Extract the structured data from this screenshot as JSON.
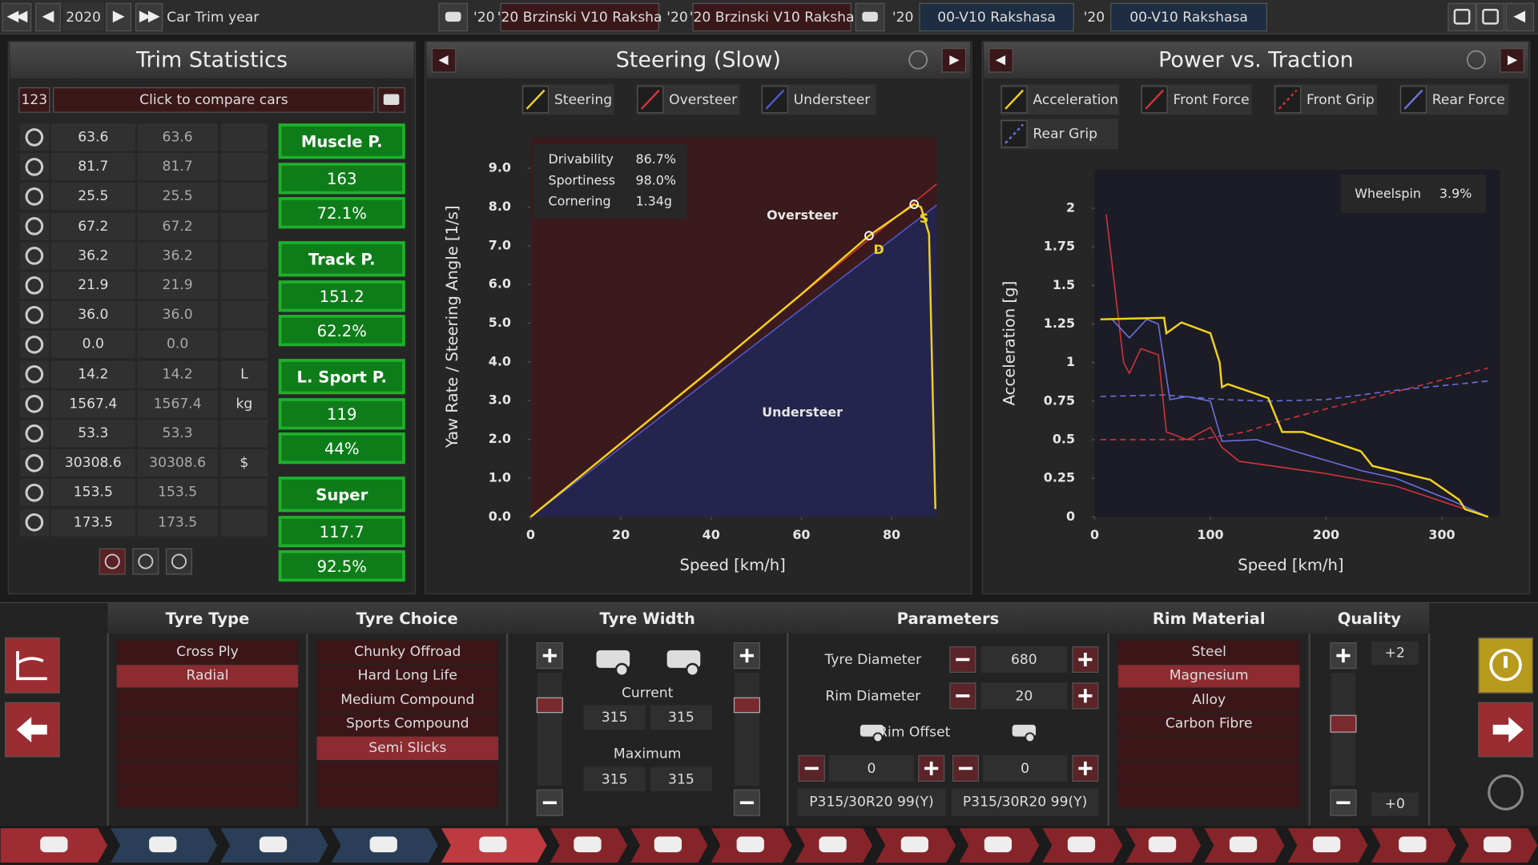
{
  "top_bar": {
    "year": "2020",
    "year_label": "Car Trim year",
    "cars": [
      {
        "year": "'20",
        "name": "'20 Brzinski V10 Raksha"
      },
      {
        "year": "'20",
        "name": "'20 Brzinski V10 Raksha"
      },
      {
        "year": "'20",
        "name": "00-V10 Rakshasa"
      },
      {
        "year": "'20",
        "name": "00-V10 Rakshasa"
      }
    ]
  },
  "trim_statistics": {
    "title": "Trim Statistics",
    "compare_id": "123",
    "compare_button": "Click to compare cars",
    "rows": [
      {
        "current": "63.6",
        "compare": "63.6"
      },
      {
        "current": "81.7",
        "compare": "81.7"
      },
      {
        "current": "25.5",
        "compare": "25.5"
      },
      {
        "current": "67.2",
        "compare": "67.2"
      },
      {
        "current": "36.2",
        "compare": "36.2"
      },
      {
        "current": "21.9",
        "compare": "21.9"
      },
      {
        "current": "36.0",
        "compare": "36.0"
      },
      {
        "current": "0.0",
        "compare": "0.0"
      },
      {
        "current": "14.2",
        "compare": "14.2",
        "unit": "L"
      },
      {
        "current": "1567.4",
        "compare": "1567.4",
        "unit": "kg"
      },
      {
        "current": "53.3",
        "compare": "53.3"
      },
      {
        "current": "30308.6",
        "compare": "30308.6",
        "unit": "$"
      },
      {
        "current": "153.5",
        "compare": "153.5"
      },
      {
        "current": "173.5",
        "compare": "173.5"
      }
    ],
    "scores": [
      {
        "name": "Muscle P.",
        "score": "163",
        "percent": "72.1%"
      },
      {
        "name": "Track P.",
        "score": "151.2",
        "percent": "62.2%"
      },
      {
        "name": "L. Sport P.",
        "score": "119",
        "percent": "44%"
      },
      {
        "name": "Super",
        "score": "117.7",
        "percent": "92.5%"
      }
    ]
  },
  "chart_data": [
    {
      "type": "line",
      "title": "Steering (Slow)",
      "xlabel": "Speed [km/h]",
      "ylabel": "Yaw Rate / Steering Angle [1/s]",
      "xlim": [
        0,
        90
      ],
      "ylim": [
        0,
        9.8
      ],
      "xticks": [
        0,
        20,
        40,
        60,
        80
      ],
      "yticks": [
        {
          "value": 0,
          "label": "0.0"
        },
        {
          "value": 1,
          "label": "1.0"
        },
        {
          "value": 2,
          "label": "2.0"
        },
        {
          "value": 3,
          "label": "3.0"
        },
        {
          "value": 4,
          "label": "4.0"
        },
        {
          "value": 5,
          "label": "5.0"
        },
        {
          "value": 6,
          "label": "6.0"
        },
        {
          "value": 7,
          "label": "7.0"
        },
        {
          "value": 8,
          "label": "8.0"
        },
        {
          "value": 9,
          "label": "9.0"
        }
      ],
      "series": [
        {
          "name": "Steering",
          "color": "#f2d21c",
          "x": [
            0,
            20,
            40,
            60,
            75,
            85,
            86.5,
            88.3,
            89.7
          ],
          "values": [
            0,
            1.9,
            3.8,
            5.75,
            7.26,
            8.07,
            8.0,
            7.3,
            0.2
          ]
        },
        {
          "name": "Oversteer",
          "color": "#d0343a",
          "x": [
            0,
            90
          ],
          "values": [
            0,
            8.6
          ]
        },
        {
          "name": "Understeer",
          "color": "#5058c8",
          "x": [
            0,
            90
          ],
          "values": [
            0,
            8.05
          ]
        }
      ],
      "stats": [
        {
          "label": "Drivability",
          "value": "86.7%"
        },
        {
          "label": "Sportiness",
          "value": "98.0%"
        },
        {
          "label": "Cornering",
          "value": "1.34g"
        }
      ],
      "annotations": [
        "Oversteer",
        "Understeer",
        "D",
        "S"
      ]
    },
    {
      "type": "line",
      "title": "Power vs. Traction",
      "xlabel": "Speed [km/h]",
      "ylabel": "Acceleration [g]",
      "xlim": [
        0,
        350
      ],
      "ylim": [
        0,
        2.25
      ],
      "xticks": [
        0,
        100,
        200,
        300
      ],
      "yticks": [
        0,
        0.25,
        0.5,
        0.75,
        1,
        1.25,
        1.5,
        1.75,
        2
      ],
      "series": [
        {
          "name": "Acceleration",
          "color": "#f2d21c",
          "style": "solid",
          "x": [
            5,
            60,
            62,
            75,
            100,
            108,
            110,
            115,
            150,
            162,
            180,
            230,
            240,
            290,
            315,
            320,
            340
          ],
          "values": [
            1.28,
            1.29,
            1.19,
            1.26,
            1.19,
            1.0,
            0.84,
            0.86,
            0.77,
            0.55,
            0.55,
            0.425,
            0.33,
            0.24,
            0.11,
            0.05,
            0
          ]
        },
        {
          "name": "Front Force",
          "color": "#d0343a",
          "style": "solid",
          "x": [
            10,
            25,
            30,
            40,
            55,
            62,
            80,
            100,
            110,
            125,
            200,
            260,
            320,
            340
          ],
          "values": [
            1.96,
            1.0,
            0.93,
            1.09,
            1.05,
            0.55,
            0.5,
            0.58,
            0.45,
            0.36,
            0.28,
            0.2,
            0.05,
            0
          ]
        },
        {
          "name": "Front Grip",
          "color": "#d0343a",
          "style": "dashed",
          "x": [
            5,
            60,
            90,
            130,
            160,
            200,
            260,
            340
          ],
          "values": [
            0.5,
            0.5,
            0.5,
            0.55,
            0.62,
            0.7,
            0.81,
            0.965
          ]
        },
        {
          "name": "Rear Force",
          "color": "#6a70e0",
          "style": "solid",
          "x": [
            15,
            30,
            45,
            55,
            65,
            80,
            100,
            110,
            140,
            175,
            230,
            260,
            310,
            340
          ],
          "values": [
            1.28,
            1.16,
            1.28,
            1.25,
            0.76,
            0.78,
            0.75,
            0.49,
            0.5,
            0.42,
            0.3,
            0.25,
            0.1,
            0
          ]
        },
        {
          "name": "Rear Grip",
          "color": "#6a70e0",
          "style": "dashed",
          "x": [
            5,
            60,
            110,
            150,
            200,
            260,
            340
          ],
          "values": [
            0.78,
            0.79,
            0.76,
            0.75,
            0.76,
            0.82,
            0.88
          ]
        }
      ],
      "stats": [
        {
          "label": "Wheelspin",
          "value": "3.9%"
        }
      ]
    }
  ],
  "tyres": {
    "tyre_type": {
      "header": "Tyre Type",
      "options": [
        "Cross Ply",
        "Radial"
      ],
      "selected": 1
    },
    "tyre_choice": {
      "header": "Tyre Choice",
      "options": [
        "Chunky Offroad",
        "Hard Long Life",
        "Medium Compound",
        "Sports Compound",
        "Semi Slicks"
      ],
      "selected": 4
    },
    "tyre_width": {
      "header": "Tyre Width",
      "current_label": "Current",
      "current": [
        "315",
        "315"
      ],
      "maximum_label": "Maximum",
      "maximum": [
        "315",
        "315"
      ]
    },
    "parameters": {
      "header": "Parameters",
      "tyre_diameter_label": "Tyre Diameter",
      "tyre_diameter": "680",
      "rim_diameter_label": "Rim Diameter",
      "rim_diameter": "20",
      "rim_offset_label": "Rim Offset",
      "rim_offset": [
        "0",
        "0"
      ],
      "tyre_codes": [
        "P315/30R20 99(Y)",
        "P315/30R20 99(Y)"
      ]
    },
    "rim_material": {
      "header": "Rim Material",
      "options": [
        "Steel",
        "Magnesium",
        "Alloy",
        "Carbon Fibre"
      ],
      "selected": 1
    },
    "quality": {
      "header": "Quality",
      "max": "+2",
      "current": "+0"
    }
  }
}
